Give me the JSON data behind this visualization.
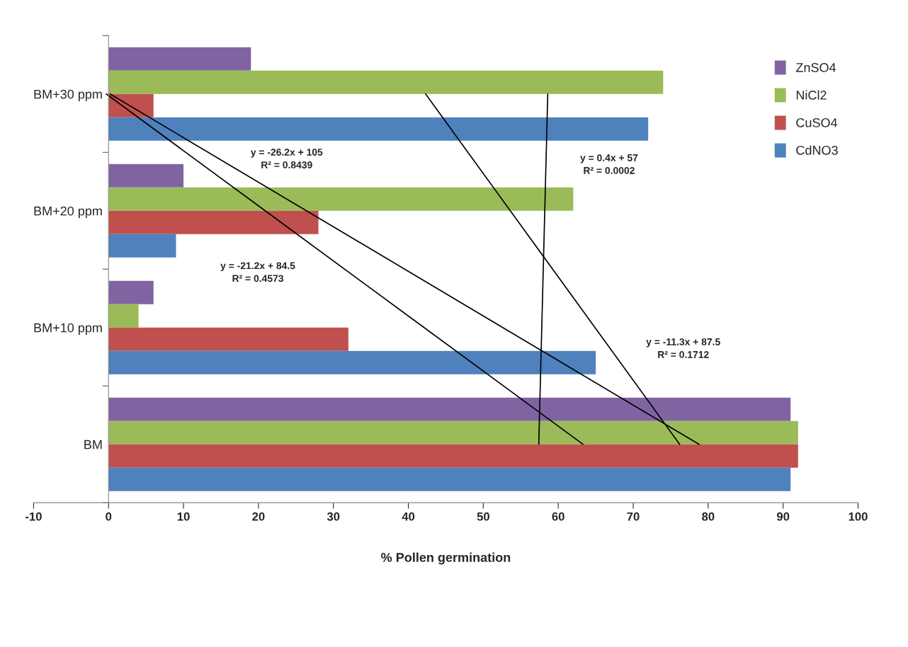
{
  "chart_data": {
    "type": "bar",
    "orientation": "horizontal",
    "xlabel": "% Pollen germination",
    "categories": [
      "BM+30 ppm",
      "BM+20 ppm",
      "BM+10 ppm",
      "BM"
    ],
    "series": [
      {
        "name": "ZnSO4",
        "color": "#8064a2",
        "values": [
          19,
          10,
          6,
          91
        ]
      },
      {
        "name": "NiCl2",
        "color": "#9bbb59",
        "values": [
          74,
          62,
          4,
          92
        ]
      },
      {
        "name": "CuSO4",
        "color": "#c0504d",
        "values": [
          6,
          28,
          32,
          92
        ]
      },
      {
        "name": "CdNO3",
        "color": "#4f81bd",
        "values": [
          72,
          9,
          65,
          91
        ]
      },
      {
        "type": "line",
        "color": "#000000",
        "values": [
          -0.3,
          20.9,
          42.1,
          63.3
        ]
      },
      {
        "type": "line",
        "color": "#000000",
        "values": [
          58.6,
          58.2,
          57.8,
          57.4
        ]
      },
      {
        "type": "line",
        "color": "#000000",
        "values": [
          0.2,
          26.4,
          52.6,
          78.8
        ]
      },
      {
        "type": "line",
        "color": "#000000",
        "values": [
          42.3,
          53.6,
          64.9,
          76.2
        ]
      }
    ],
    "xlim": [
      -10,
      100
    ],
    "xticks": [
      -10,
      0,
      10,
      20,
      30,
      40,
      50,
      60,
      70,
      80,
      90,
      100
    ],
    "legend": "top right",
    "marker": "none",
    "line_style": "solid",
    "annotations": [
      "y = -26.2x + 105\nR² = 0.8439",
      "y = -21.2x + 84.5\nR² = 0.4573",
      "y = 0.4x + 57\nR² = 0.0002",
      "y = -11.3x + 87.5\nR² = 0.1712"
    ]
  }
}
